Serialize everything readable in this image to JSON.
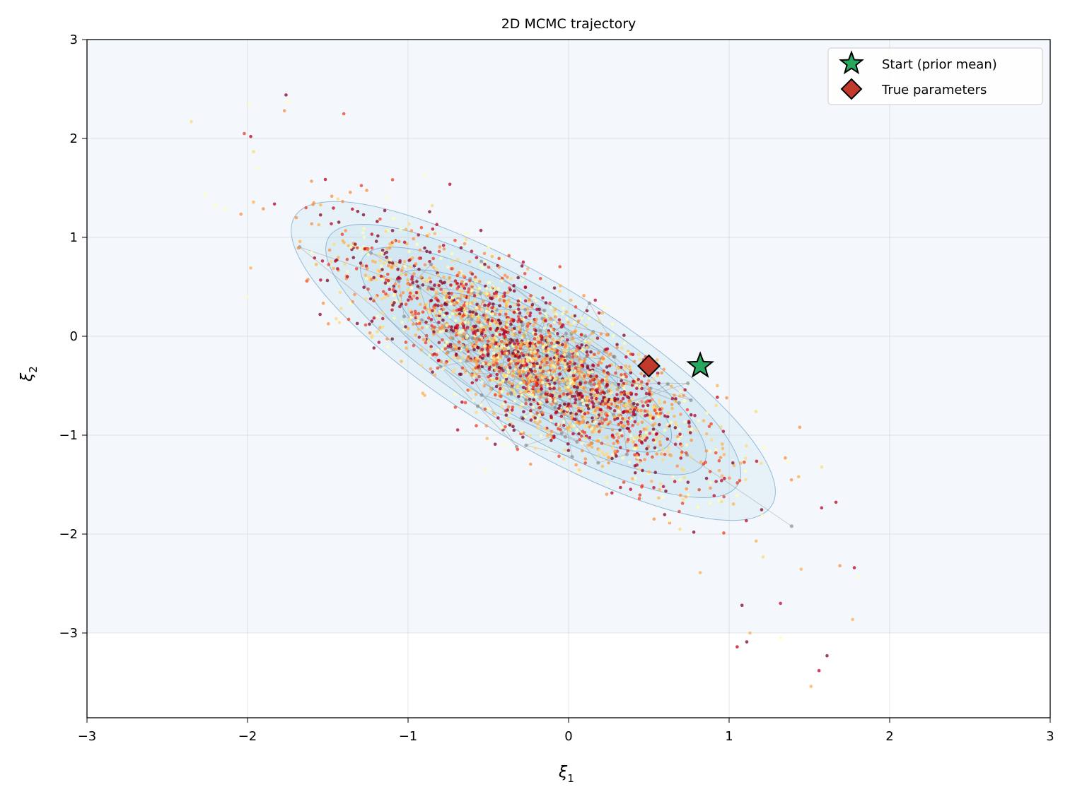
{
  "chart_data": {
    "type": "scatter",
    "title": "2D MCMC trajectory",
    "xlabel": "ξ",
    "xlabel_sub": "1",
    "ylabel": "ξ",
    "ylabel_sub": "2",
    "xlim": [
      -3,
      3
    ],
    "ylim": [
      -3.86,
      3
    ],
    "xticks": [
      -3,
      -2,
      -1,
      0,
      1,
      2,
      3
    ],
    "yticks": [
      -3,
      -2,
      -1,
      0,
      1,
      2,
      3
    ],
    "xtick_labels": [
      "−3",
      "−2",
      "−1",
      "0",
      "1",
      "2",
      "3"
    ],
    "ytick_labels": [
      "−3",
      "−2",
      "−1",
      "0",
      "1",
      "2",
      "3"
    ],
    "grid": true,
    "legend_position": "top-right",
    "posterior_samples": {
      "approx_count": 2500,
      "mean": [
        -0.22,
        -0.25
      ],
      "std": [
        0.58,
        0.62
      ],
      "correlation": -0.82,
      "colormap": [
        "#ffffb2",
        "#fed976",
        "#feb24c",
        "#fd8d3c",
        "#f03b20",
        "#bd0026",
        "#800026"
      ],
      "outliers": [
        [
          -2.35,
          2.17
        ],
        [
          -1.76,
          2.44
        ],
        [
          -1.75,
          2.37
        ],
        [
          -1.77,
          2.28
        ],
        [
          -1.99,
          2.34
        ],
        [
          -2.02,
          2.05
        ],
        [
          -1.98,
          2.02
        ],
        [
          -1.98,
          0.69
        ],
        [
          -1.4,
          2.25
        ],
        [
          1.08,
          -2.72
        ],
        [
          1.32,
          -2.7
        ],
        [
          1.32,
          -3.05
        ],
        [
          1.05,
          -3.14
        ],
        [
          1.11,
          -3.09
        ],
        [
          1.13,
          -3.0
        ],
        [
          1.61,
          -3.23
        ],
        [
          1.56,
          -3.38
        ],
        [
          1.51,
          -3.54
        ],
        [
          1.78,
          -2.34
        ],
        [
          1.8,
          -2.43
        ],
        [
          1.69,
          -2.32
        ],
        [
          0.82,
          -2.39
        ],
        [
          0.78,
          -1.98
        ],
        [
          1.44,
          -0.92
        ],
        [
          1.35,
          -1.23
        ]
      ]
    },
    "trajectory": {
      "approx_steps": 180,
      "color": "#808080"
    },
    "density_contours": {
      "levels": 7,
      "color": "#4a89c0",
      "fill": "#9ecae1"
    },
    "series": [
      {
        "name": "Start (prior mean)",
        "x": 0.82,
        "y": -0.3,
        "marker": "star",
        "color": "#27a85f"
      },
      {
        "name": "True parameters",
        "x": 0.5,
        "y": -0.3,
        "marker": "diamond",
        "color": "#c0392b"
      }
    ]
  }
}
